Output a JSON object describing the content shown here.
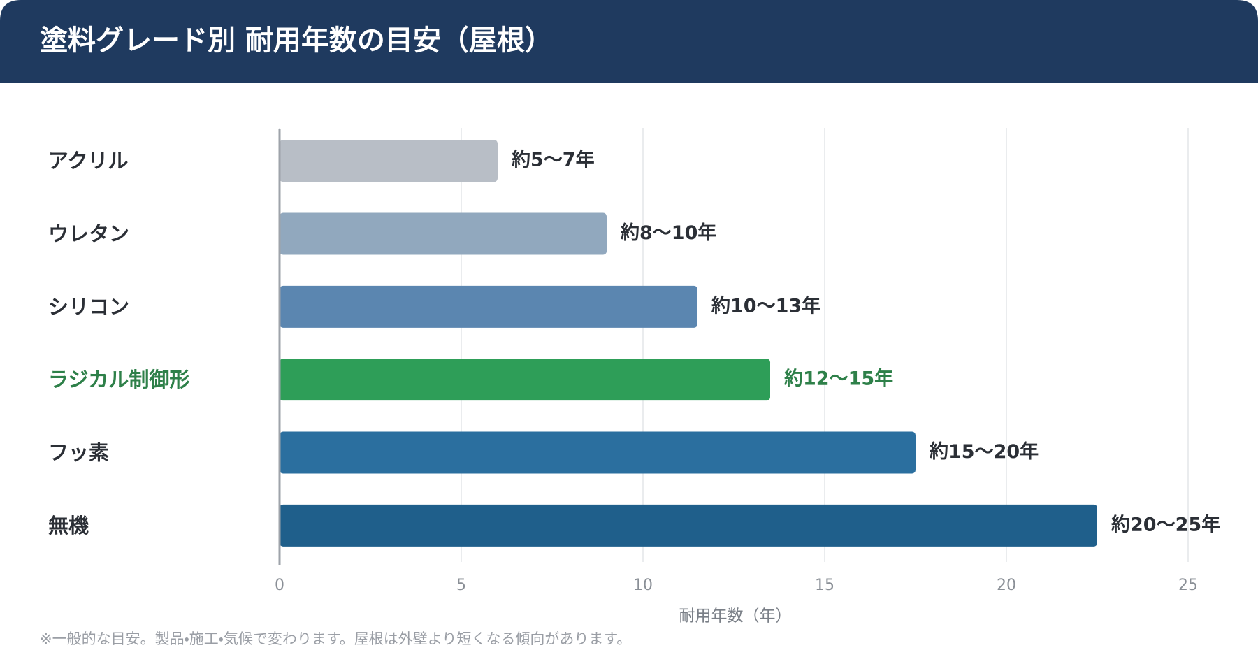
{
  "chart_data": {
    "type": "bar",
    "orientation": "horizontal",
    "title": "塗料グレード別 耐用年数の目安（屋根）",
    "categories": [
      "アクリル",
      "ウレタン",
      "シリコン",
      "ラジカル制御形",
      "フッ素",
      "無機"
    ],
    "values": [
      6,
      9,
      11.5,
      13.5,
      17.5,
      22.5
    ],
    "value_labels": [
      "約5〜7年",
      "約8〜10年",
      "約10〜13年",
      "約12〜15年",
      "約15〜20年",
      "約20〜25年"
    ],
    "colors": [
      "#b8bec6",
      "#91a8be",
      "#5b86b0",
      "#2e9e58",
      "#2b6f9f",
      "#1f5f8b"
    ],
    "category_label_colors": [
      "#2b2f36",
      "#2b2f36",
      "#2b2f36",
      "#2e8049",
      "#2b2f36",
      "#2b2f36"
    ],
    "xlim": [
      0,
      25
    ],
    "xticks": [
      0,
      5,
      10,
      15,
      20,
      25
    ],
    "grid": true,
    "xlabel": "耐用年数（年）",
    "note": "※一般的な目安。製品・施工・気候で変わります。屋根は外壁より短くなる傾向があります。"
  }
}
